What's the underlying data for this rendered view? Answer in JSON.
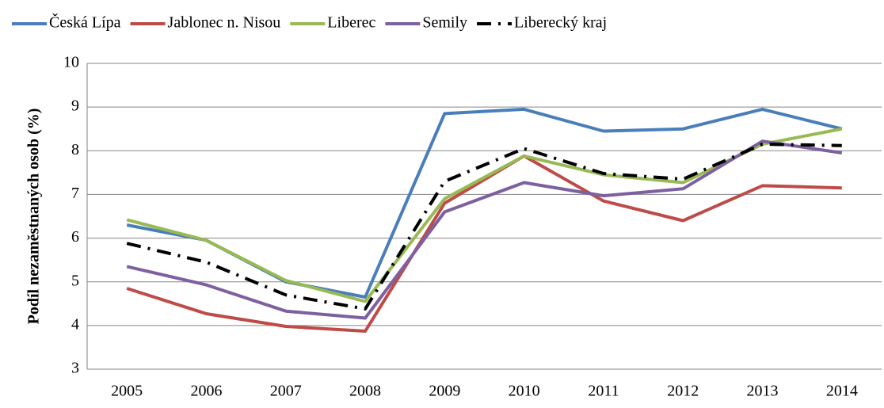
{
  "chart_data": {
    "type": "line",
    "y_axis_label": "Podíl nezaměstnaných osob (%)",
    "categories": [
      "2005",
      "2006",
      "2007",
      "2008",
      "2009",
      "2010",
      "2011",
      "2012",
      "2013",
      "2014"
    ],
    "series": [
      {
        "name": "Česká Lípa",
        "color": "#4a7ebb",
        "values": [
          6.3,
          5.95,
          5.0,
          4.65,
          8.85,
          8.95,
          8.45,
          8.5,
          8.95,
          8.5
        ]
      },
      {
        "name": "Jablonec n. Nisou",
        "color": "#be4b48",
        "values": [
          4.85,
          4.27,
          3.98,
          3.87,
          6.8,
          7.88,
          6.85,
          6.4,
          7.2,
          7.15
        ]
      },
      {
        "name": "Liberec",
        "color": "#98b954",
        "values": [
          6.42,
          5.95,
          5.03,
          4.55,
          6.9,
          7.88,
          7.45,
          7.27,
          8.15,
          8.5
        ]
      },
      {
        "name": "Semily",
        "color": "#7d60a0",
        "values": [
          5.35,
          4.93,
          4.33,
          4.17,
          6.6,
          7.27,
          6.97,
          7.13,
          8.22,
          7.95
        ]
      },
      {
        "name": "Liberecký kraj",
        "color": "#000000",
        "line_style": "dash-dot",
        "values": [
          5.88,
          5.45,
          4.7,
          4.38,
          7.3,
          8.05,
          7.48,
          7.35,
          8.15,
          8.12
        ]
      }
    ],
    "ylim": [
      3,
      10
    ],
    "yticks": [
      3,
      4,
      5,
      6,
      7,
      8,
      9,
      10
    ],
    "grid": true,
    "legend": "top"
  }
}
